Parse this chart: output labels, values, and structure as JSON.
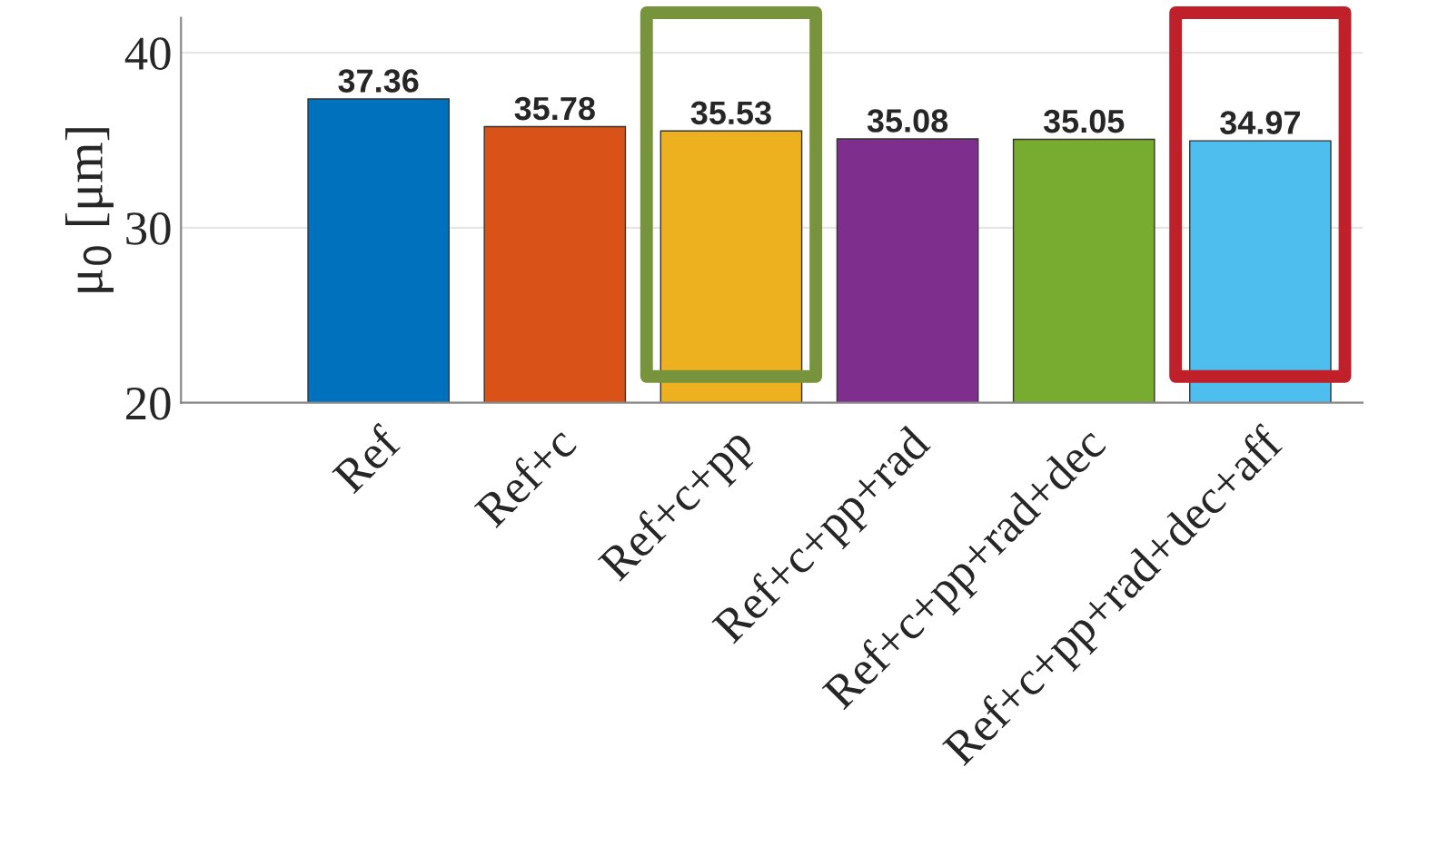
{
  "chart_data": {
    "type": "bar",
    "ylabel": "μ$_{0}$ [μm]",
    "categories": [
      "Ref",
      "Ref+c",
      "Ref+c+pp",
      "Ref+c+pp+rad",
      "Ref+c+pp+rad+dec",
      "Ref+c+pp+rad+dec+aff"
    ],
    "values": [
      37.36,
      35.78,
      35.53,
      35.08,
      35.05,
      34.97
    ],
    "colors": [
      "#0072bd",
      "#d95319",
      "#edb120",
      "#7e2f8e",
      "#77ac30",
      "#4dbeee"
    ],
    "ylim": [
      20,
      42
    ],
    "yticks": [
      20,
      30,
      40
    ],
    "grid": true,
    "data_labels": true
  }
}
